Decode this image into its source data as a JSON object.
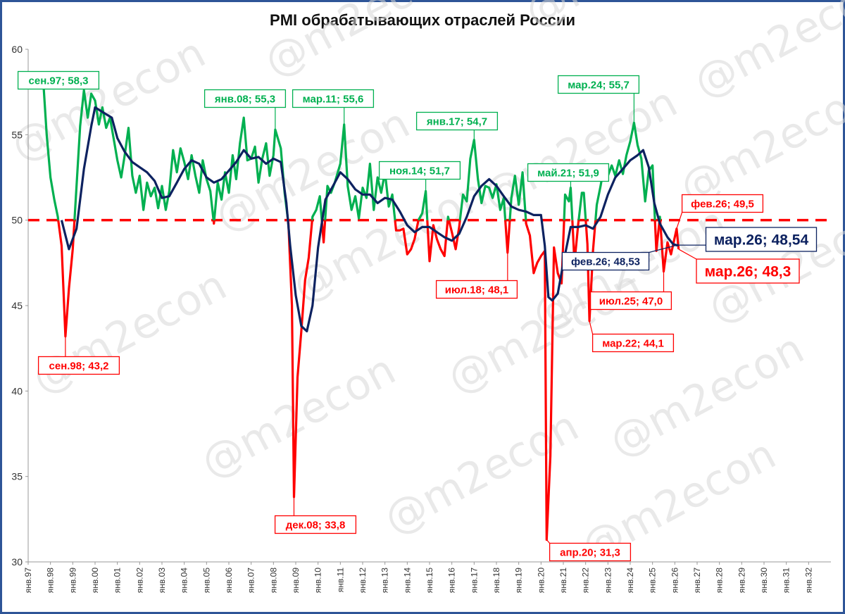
{
  "chart_data": {
    "type": "line",
    "title": "PMI обрабатывающих отраслей России",
    "xlabel": "",
    "ylabel": "",
    "ylim": [
      30,
      60
    ],
    "yticks": [
      30,
      35,
      40,
      45,
      50,
      55,
      60
    ],
    "xlim": [
      1997.0,
      2033.0
    ],
    "x_tick_labels": [
      "янв.97",
      "янв.98",
      "янв.99",
      "янв.00",
      "янв.01",
      "янв.02",
      "янв.03",
      "янв.04",
      "янв.05",
      "янв.06",
      "янв.07",
      "янв.08",
      "янв.09",
      "янв.10",
      "янв.11",
      "янв.12",
      "янв.13",
      "янв.14",
      "янв.15",
      "янв.16",
      "янв.17",
      "янв.18",
      "янв.19",
      "янв.20",
      "янв.21",
      "янв.22",
      "янв.23",
      "янв.24",
      "янв.25",
      "янв.26",
      "янв.27",
      "янв.28",
      "янв.29",
      "янв.30",
      "янв.31",
      "янв.32"
    ],
    "threshold": 50,
    "grid": false,
    "colors": {
      "above": "#00b050",
      "below": "#ff0000",
      "trend": "#0d2260",
      "threshold": "#ff0000",
      "frame": "#2e5597"
    },
    "series": [
      {
        "role": "pmi",
        "points": [
          [
            1997.67,
            58.3
          ],
          [
            1997.83,
            55.0
          ],
          [
            1998.0,
            52.5
          ],
          [
            1998.17,
            51.2
          ],
          [
            1998.33,
            50.2
          ],
          [
            1998.5,
            48.5
          ],
          [
            1998.67,
            43.2
          ],
          [
            1998.83,
            46.0
          ],
          [
            1999.0,
            48.3
          ],
          [
            1999.17,
            52.0
          ],
          [
            1999.33,
            55.5
          ],
          [
            1999.5,
            57.6
          ],
          [
            1999.67,
            56.0
          ],
          [
            1999.83,
            57.4
          ],
          [
            2000.0,
            57.0
          ],
          [
            2000.17,
            55.6
          ],
          [
            2000.33,
            56.6
          ],
          [
            2000.5,
            55.4
          ],
          [
            2000.67,
            56.0
          ],
          [
            2000.83,
            54.8
          ],
          [
            2001.0,
            53.5
          ],
          [
            2001.17,
            52.5
          ],
          [
            2001.33,
            53.8
          ],
          [
            2001.5,
            55.4
          ],
          [
            2001.67,
            52.6
          ],
          [
            2001.83,
            51.6
          ],
          [
            2002.0,
            52.6
          ],
          [
            2002.17,
            50.6
          ],
          [
            2002.33,
            52.2
          ],
          [
            2002.5,
            51.4
          ],
          [
            2002.67,
            51.9
          ],
          [
            2002.83,
            50.7
          ],
          [
            2003.0,
            52.0
          ],
          [
            2003.17,
            50.6
          ],
          [
            2003.33,
            51.7
          ],
          [
            2003.5,
            54.1
          ],
          [
            2003.67,
            52.8
          ],
          [
            2003.83,
            54.2
          ],
          [
            2004.0,
            53.4
          ],
          [
            2004.17,
            52.4
          ],
          [
            2004.33,
            53.8
          ],
          [
            2004.5,
            52.6
          ],
          [
            2004.67,
            51.6
          ],
          [
            2004.83,
            53.5
          ],
          [
            2005.0,
            52.4
          ],
          [
            2005.17,
            51.7
          ],
          [
            2005.33,
            49.8
          ],
          [
            2005.5,
            52.2
          ],
          [
            2005.67,
            51.2
          ],
          [
            2005.83,
            52.8
          ],
          [
            2006.0,
            51.6
          ],
          [
            2006.17,
            53.8
          ],
          [
            2006.33,
            52.4
          ],
          [
            2006.5,
            54.5
          ],
          [
            2006.67,
            56.0
          ],
          [
            2006.83,
            53.5
          ],
          [
            2007.0,
            53.6
          ],
          [
            2007.17,
            54.3
          ],
          [
            2007.33,
            52.2
          ],
          [
            2007.5,
            53.6
          ],
          [
            2007.67,
            54.5
          ],
          [
            2007.83,
            52.6
          ],
          [
            2008.0,
            53.8
          ],
          [
            2008.08,
            55.3
          ],
          [
            2008.33,
            54.2
          ],
          [
            2008.5,
            51.6
          ],
          [
            2008.67,
            49.8
          ],
          [
            2008.83,
            45.0
          ],
          [
            2008.92,
            33.8
          ],
          [
            2009.08,
            40.8
          ],
          [
            2009.25,
            43.5
          ],
          [
            2009.42,
            46.5
          ],
          [
            2009.58,
            47.8
          ],
          [
            2009.75,
            50.2
          ],
          [
            2009.92,
            50.6
          ],
          [
            2010.08,
            51.4
          ],
          [
            2010.25,
            48.7
          ],
          [
            2010.42,
            52.0
          ],
          [
            2010.58,
            51.6
          ],
          [
            2010.75,
            52.2
          ],
          [
            2011.0,
            53.3
          ],
          [
            2011.17,
            55.6
          ],
          [
            2011.33,
            52.0
          ],
          [
            2011.5,
            50.6
          ],
          [
            2011.67,
            51.4
          ],
          [
            2011.83,
            50.1
          ],
          [
            2012.0,
            51.9
          ],
          [
            2012.17,
            51.3
          ],
          [
            2012.33,
            53.3
          ],
          [
            2012.5,
            50.6
          ],
          [
            2012.67,
            52.5
          ],
          [
            2012.83,
            51.6
          ],
          [
            2013.0,
            52.8
          ],
          [
            2013.17,
            50.8
          ],
          [
            2013.33,
            51.5
          ],
          [
            2013.5,
            49.4
          ],
          [
            2013.67,
            49.4
          ],
          [
            2013.83,
            49.5
          ],
          [
            2014.0,
            48.0
          ],
          [
            2014.17,
            48.3
          ],
          [
            2014.33,
            48.9
          ],
          [
            2014.5,
            50.0
          ],
          [
            2014.67,
            50.4
          ],
          [
            2014.83,
            51.7
          ],
          [
            2015.0,
            47.6
          ],
          [
            2015.17,
            49.7
          ],
          [
            2015.33,
            48.9
          ],
          [
            2015.5,
            48.3
          ],
          [
            2015.67,
            47.9
          ],
          [
            2015.83,
            50.2
          ],
          [
            2016.0,
            49.3
          ],
          [
            2016.17,
            48.3
          ],
          [
            2016.33,
            49.6
          ],
          [
            2016.5,
            51.5
          ],
          [
            2016.67,
            51.1
          ],
          [
            2016.83,
            53.6
          ],
          [
            2017.0,
            54.7
          ],
          [
            2017.17,
            52.4
          ],
          [
            2017.33,
            51.0
          ],
          [
            2017.5,
            52.0
          ],
          [
            2017.67,
            51.9
          ],
          [
            2017.83,
            51.3
          ],
          [
            2018.0,
            52.1
          ],
          [
            2018.17,
            50.6
          ],
          [
            2018.33,
            51.3
          ],
          [
            2018.5,
            48.1
          ],
          [
            2018.67,
            51.3
          ],
          [
            2018.83,
            52.6
          ],
          [
            2019.0,
            50.9
          ],
          [
            2019.17,
            52.8
          ],
          [
            2019.33,
            49.8
          ],
          [
            2019.5,
            49.1
          ],
          [
            2019.67,
            46.9
          ],
          [
            2019.83,
            47.5
          ],
          [
            2020.0,
            47.9
          ],
          [
            2020.17,
            48.2
          ],
          [
            2020.25,
            31.3
          ],
          [
            2020.42,
            36.2
          ],
          [
            2020.58,
            48.4
          ],
          [
            2020.75,
            46.9
          ],
          [
            2020.92,
            46.3
          ],
          [
            2021.08,
            51.5
          ],
          [
            2021.25,
            51.1
          ],
          [
            2021.33,
            51.9
          ],
          [
            2021.5,
            47.5
          ],
          [
            2021.67,
            49.8
          ],
          [
            2021.83,
            51.6
          ],
          [
            2021.92,
            51.6
          ],
          [
            2022.08,
            48.6
          ],
          [
            2022.17,
            44.1
          ],
          [
            2022.33,
            48.2
          ],
          [
            2022.5,
            50.9
          ],
          [
            2022.67,
            52.0
          ],
          [
            2022.83,
            53.2
          ],
          [
            2023.0,
            52.6
          ],
          [
            2023.17,
            53.2
          ],
          [
            2023.33,
            52.6
          ],
          [
            2023.5,
            53.5
          ],
          [
            2023.67,
            52.7
          ],
          [
            2023.83,
            53.8
          ],
          [
            2024.0,
            54.6
          ],
          [
            2024.17,
            55.7
          ],
          [
            2024.33,
            54.4
          ],
          [
            2024.5,
            53.6
          ],
          [
            2024.67,
            51.1
          ],
          [
            2024.83,
            52.9
          ],
          [
            2025.0,
            53.2
          ],
          [
            2025.17,
            48.2
          ],
          [
            2025.33,
            50.2
          ],
          [
            2025.5,
            47.0
          ],
          [
            2025.67,
            48.7
          ],
          [
            2025.83,
            48.0
          ],
          [
            2026.08,
            49.5
          ],
          [
            2026.17,
            48.3
          ]
        ]
      },
      {
        "role": "trend",
        "points": [
          [
            1998.5,
            50.0
          ],
          [
            1998.83,
            48.3
          ],
          [
            1999.17,
            49.5
          ],
          [
            1999.5,
            53.0
          ],
          [
            1999.83,
            55.5
          ],
          [
            2000.0,
            56.6
          ],
          [
            2000.25,
            56.4
          ],
          [
            2000.5,
            56.2
          ],
          [
            2000.75,
            56.0
          ],
          [
            2001.0,
            54.8
          ],
          [
            2001.33,
            54.0
          ],
          [
            2001.67,
            53.4
          ],
          [
            2002.0,
            53.1
          ],
          [
            2002.33,
            52.8
          ],
          [
            2002.67,
            52.3
          ],
          [
            2003.0,
            51.3
          ],
          [
            2003.33,
            51.4
          ],
          [
            2003.67,
            52.2
          ],
          [
            2004.0,
            53.0
          ],
          [
            2004.33,
            53.5
          ],
          [
            2004.67,
            53.3
          ],
          [
            2005.0,
            52.5
          ],
          [
            2005.33,
            52.2
          ],
          [
            2005.67,
            52.4
          ],
          [
            2006.0,
            52.9
          ],
          [
            2006.33,
            53.4
          ],
          [
            2006.67,
            54.1
          ],
          [
            2007.0,
            53.6
          ],
          [
            2007.33,
            53.7
          ],
          [
            2007.67,
            53.3
          ],
          [
            2008.0,
            53.6
          ],
          [
            2008.33,
            53.4
          ],
          [
            2008.58,
            51.0
          ],
          [
            2008.75,
            48.5
          ],
          [
            2009.0,
            45.6
          ],
          [
            2009.25,
            43.8
          ],
          [
            2009.5,
            43.5
          ],
          [
            2009.75,
            45.0
          ],
          [
            2010.0,
            48.4
          ],
          [
            2010.33,
            51.2
          ],
          [
            2010.67,
            52.0
          ],
          [
            2011.0,
            52.8
          ],
          [
            2011.33,
            52.4
          ],
          [
            2011.67,
            51.8
          ],
          [
            2012.0,
            51.5
          ],
          [
            2012.33,
            51.5
          ],
          [
            2012.67,
            51.0
          ],
          [
            2013.0,
            51.3
          ],
          [
            2013.33,
            51.2
          ],
          [
            2013.67,
            50.5
          ],
          [
            2014.0,
            49.7
          ],
          [
            2014.33,
            49.3
          ],
          [
            2014.67,
            49.6
          ],
          [
            2015.0,
            49.6
          ],
          [
            2015.33,
            49.3
          ],
          [
            2015.67,
            49.0
          ],
          [
            2016.0,
            48.8
          ],
          [
            2016.33,
            49.2
          ],
          [
            2016.67,
            50.2
          ],
          [
            2017.0,
            51.4
          ],
          [
            2017.33,
            52.0
          ],
          [
            2017.67,
            52.4
          ],
          [
            2018.0,
            52.0
          ],
          [
            2018.33,
            51.4
          ],
          [
            2018.67,
            50.8
          ],
          [
            2019.0,
            50.6
          ],
          [
            2019.33,
            50.5
          ],
          [
            2019.67,
            50.3
          ],
          [
            2020.0,
            50.3
          ],
          [
            2020.17,
            48.5
          ],
          [
            2020.33,
            45.5
          ],
          [
            2020.5,
            45.3
          ],
          [
            2020.75,
            45.7
          ],
          [
            2021.0,
            47.5
          ],
          [
            2021.33,
            49.6
          ],
          [
            2021.67,
            49.6
          ],
          [
            2022.0,
            49.7
          ],
          [
            2022.33,
            49.5
          ],
          [
            2022.67,
            50.2
          ],
          [
            2023.0,
            51.5
          ],
          [
            2023.33,
            52.5
          ],
          [
            2023.67,
            53.0
          ],
          [
            2024.0,
            53.5
          ],
          [
            2024.33,
            53.8
          ],
          [
            2024.58,
            54.1
          ],
          [
            2024.83,
            53.1
          ],
          [
            2025.08,
            51.0
          ],
          [
            2025.33,
            49.8
          ],
          [
            2025.67,
            49.0
          ],
          [
            2025.92,
            48.6
          ],
          [
            2026.08,
            48.53
          ],
          [
            2026.17,
            48.54
          ]
        ]
      }
    ],
    "annotations": [
      {
        "text": "сен.97; 58,3",
        "x": 1997.67,
        "y": 58.3,
        "color": "green"
      },
      {
        "text": "сен.98; 43,2",
        "x": 1998.67,
        "y": 43.2,
        "color": "red"
      },
      {
        "text": "янв.08; 55,3",
        "x": 2008.08,
        "y": 55.3,
        "color": "green"
      },
      {
        "text": "дек.08; 33,8",
        "x": 2008.92,
        "y": 33.8,
        "color": "red"
      },
      {
        "text": "мар.11; 55,6",
        "x": 2011.17,
        "y": 55.6,
        "color": "green"
      },
      {
        "text": "ноя.14; 51,7",
        "x": 2014.83,
        "y": 51.7,
        "color": "green"
      },
      {
        "text": "янв.17; 54,7",
        "x": 2017.0,
        "y": 54.7,
        "color": "green"
      },
      {
        "text": "июл.18; 48,1",
        "x": 2018.5,
        "y": 48.1,
        "color": "red"
      },
      {
        "text": "апр.20; 31,3",
        "x": 2020.25,
        "y": 31.3,
        "color": "red"
      },
      {
        "text": "май.21; 51,9",
        "x": 2021.33,
        "y": 51.9,
        "color": "green"
      },
      {
        "text": "мар.22; 44,1",
        "x": 2022.17,
        "y": 44.1,
        "color": "red"
      },
      {
        "text": "мар.24; 55,7",
        "x": 2024.17,
        "y": 55.7,
        "color": "green"
      },
      {
        "text": "июл.25; 47,0",
        "x": 2025.5,
        "y": 47.0,
        "color": "red"
      },
      {
        "text": "фев.26; 49,5",
        "x": 2026.08,
        "y": 49.5,
        "color": "red"
      },
      {
        "text": "фев.26; 48,53",
        "x": 2026.08,
        "y": 48.53,
        "color": "navy"
      },
      {
        "text": "мар.26; 48,54",
        "x": 2026.17,
        "y": 48.54,
        "color": "navy",
        "size": "large"
      },
      {
        "text": "мар.26; 48,3",
        "x": 2026.17,
        "y": 48.3,
        "color": "red",
        "size": "large"
      }
    ],
    "watermark": "@m2econ"
  }
}
